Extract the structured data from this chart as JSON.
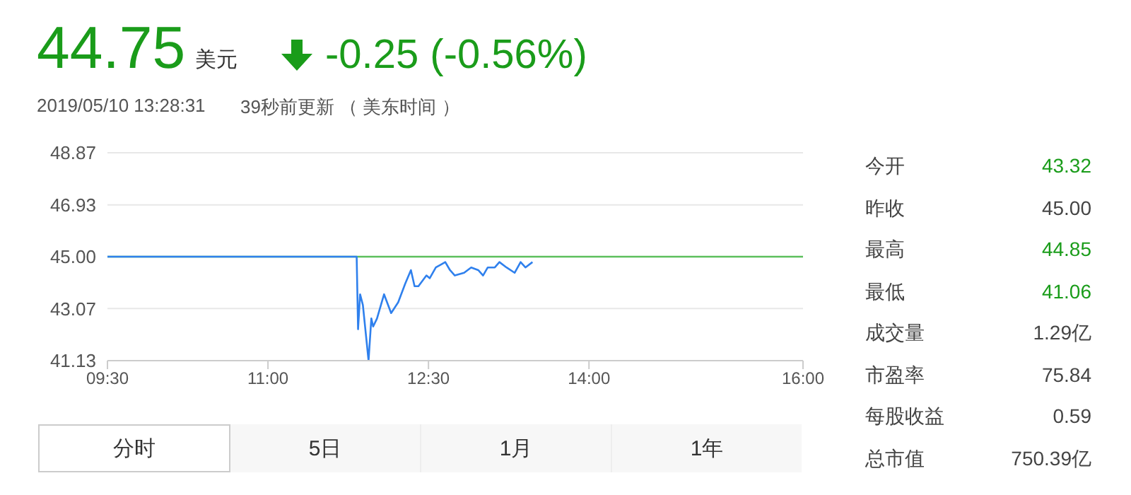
{
  "chart_data": {
    "type": "line",
    "title": "44.75",
    "annotations": [
      "美元",
      "-0.25 (-0.56%)",
      "2019/05/10 13:28:31",
      "39秒前更新 （ 美东时间 ）",
      "今开",
      "43.32",
      "昨收",
      "45.00",
      "最高",
      "44.85",
      "最低",
      "41.06",
      "成交量",
      "1.29亿",
      "市盈率",
      "75.84",
      "每股收益",
      "0.59",
      "总市值",
      "750.39亿",
      "分时",
      "5日",
      "1月",
      "1年"
    ],
    "series": [
      {
        "color": "#2f80ed",
        "x": [
          9.5,
          11.829,
          11.842,
          11.861,
          11.887,
          11.94,
          11.966,
          11.983,
          12.019,
          12.085,
          12.151,
          12.217,
          12.283,
          12.336,
          12.37,
          12.406,
          12.481,
          12.512,
          12.569,
          12.614,
          12.657,
          12.701,
          12.746,
          12.833,
          12.899,
          12.965,
          13.01,
          13.054,
          13.12,
          13.163,
          13.229,
          13.305,
          13.361,
          13.406,
          13.472
        ],
        "values": [
          45,
          45,
          42.3,
          43.6,
          43.2,
          41.13,
          42.7,
          42.4,
          42.7,
          43.6,
          42.9,
          43.3,
          44.0,
          44.5,
          43.9,
          43.9,
          44.3,
          44.2,
          44.6,
          44.7,
          44.8,
          44.5,
          44.3,
          44.4,
          44.6,
          44.5,
          44.3,
          44.6,
          44.6,
          44.8,
          44.6,
          44.4,
          44.8,
          44.6,
          44.8
        ]
      }
    ],
    "xlim": [
      9.5,
      16
    ],
    "xticks": [
      {
        "value": 9.5,
        "label": "09:30"
      },
      {
        "value": 11,
        "label": "11:00"
      },
      {
        "value": 12.5,
        "label": "12:30"
      },
      {
        "value": 14,
        "label": "14:00"
      },
      {
        "value": 16,
        "label": "16:00"
      }
    ],
    "ylim": [
      41.13,
      48.87
    ],
    "yticks": [
      41.13,
      43.07,
      {
        "value": 45,
        "label": "45.00"
      },
      46.93,
      48.87
    ],
    "ref_lines": [
      {
        "axis": "y",
        "value": 45,
        "color": "#5cbf5c"
      }
    ],
    "grid": "y",
    "legend": false,
    "marker": "none",
    "line_style": "solid"
  }
}
